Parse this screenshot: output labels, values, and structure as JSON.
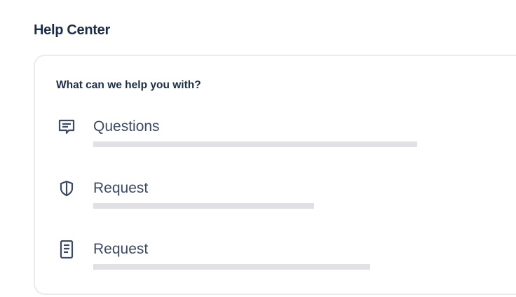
{
  "header": {
    "title": "Help Center"
  },
  "card": {
    "subtitle": "What can we help you with?",
    "items": [
      {
        "label": "Questions",
        "icon": "chat-message-icon",
        "bar_fill": 0.75
      },
      {
        "label": "Request",
        "icon": "shield-icon",
        "bar_fill": 0.51
      },
      {
        "label": "Request",
        "icon": "document-icon",
        "bar_fill": 0.64
      }
    ]
  },
  "colors": {
    "heading": "#1c2d4c",
    "text": "#3b4a66",
    "bar": "#e0e0e6",
    "border": "#ececef"
  }
}
